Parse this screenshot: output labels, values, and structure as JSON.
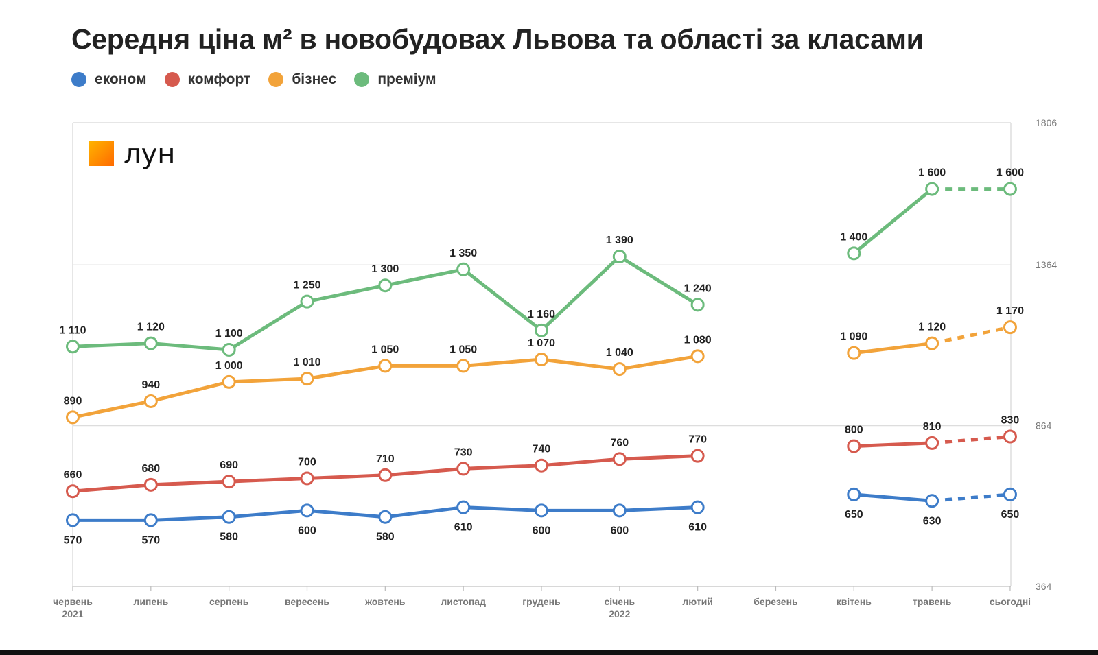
{
  "title": "Середня ціна м² в новобудовах Львова та області за класами",
  "legend": [
    {
      "label": "економ",
      "color": "#3d7cc9"
    },
    {
      "label": "комфорт",
      "color": "#d65a4e"
    },
    {
      "label": "бізнес",
      "color": "#f2a33a"
    },
    {
      "label": "преміум",
      "color": "#6cbb7c"
    }
  ],
  "logo": {
    "text": "лун",
    "icon": "lun-logo-square"
  },
  "chart_data": {
    "type": "line",
    "categories": [
      {
        "label": "червень",
        "sub": "2021"
      },
      {
        "label": "липень",
        "sub": ""
      },
      {
        "label": "серпень",
        "sub": ""
      },
      {
        "label": "вересень",
        "sub": ""
      },
      {
        "label": "жовтень",
        "sub": ""
      },
      {
        "label": "листопад",
        "sub": ""
      },
      {
        "label": "грудень",
        "sub": ""
      },
      {
        "label": "січень",
        "sub": "2022"
      },
      {
        "label": "лютий",
        "sub": ""
      },
      {
        "label": "березень",
        "sub": ""
      },
      {
        "label": "квітень",
        "sub": ""
      },
      {
        "label": "травень",
        "sub": ""
      },
      {
        "label": "сьогодні",
        "sub": ""
      }
    ],
    "y_axis": {
      "position": "right",
      "ticks": [
        364,
        864,
        1364,
        1806
      ],
      "ylim": [
        364,
        1806
      ],
      "grid": true
    },
    "dashed_last_segment": true,
    "series": [
      {
        "name": "економ",
        "color": "#3d7cc9",
        "values": [
          570,
          570,
          580,
          600,
          580,
          610,
          600,
          600,
          610,
          null,
          650,
          630,
          650
        ],
        "labels": [
          "570",
          "570",
          "580",
          "600",
          "580",
          "610",
          "600",
          "600",
          "610",
          "",
          "650",
          "630",
          "650"
        ],
        "label_pos": "below"
      },
      {
        "name": "комфорт",
        "color": "#d65a4e",
        "values": [
          660,
          680,
          690,
          700,
          710,
          730,
          740,
          760,
          770,
          null,
          800,
          810,
          830
        ],
        "labels": [
          "660",
          "680",
          "690",
          "700",
          "710",
          "730",
          "740",
          "760",
          "770",
          "",
          "800",
          "810",
          "830"
        ],
        "label_pos": "above"
      },
      {
        "name": "бізнес",
        "color": "#f2a33a",
        "values": [
          890,
          940,
          1000,
          1010,
          1050,
          1050,
          1070,
          1040,
          1080,
          null,
          1090,
          1120,
          1170
        ],
        "labels": [
          "890",
          "940",
          "1 000",
          "1 010",
          "1 050",
          "1 050",
          "1 070",
          "1 040",
          "1 080",
          "",
          "1 090",
          "1 120",
          "1 170"
        ],
        "label_pos": "above"
      },
      {
        "name": "преміум",
        "color": "#6cbb7c",
        "values": [
          1110,
          1120,
          1100,
          1250,
          1300,
          1350,
          1160,
          1390,
          1240,
          null,
          1400,
          1600,
          1600
        ],
        "labels": [
          "1 110",
          "1 120",
          "1 100",
          "1 250",
          "1 300",
          "1 350",
          "1 160",
          "1 390",
          "1 240",
          "",
          "1 400",
          "1 600",
          "1 600"
        ],
        "label_pos": "above"
      }
    ]
  }
}
